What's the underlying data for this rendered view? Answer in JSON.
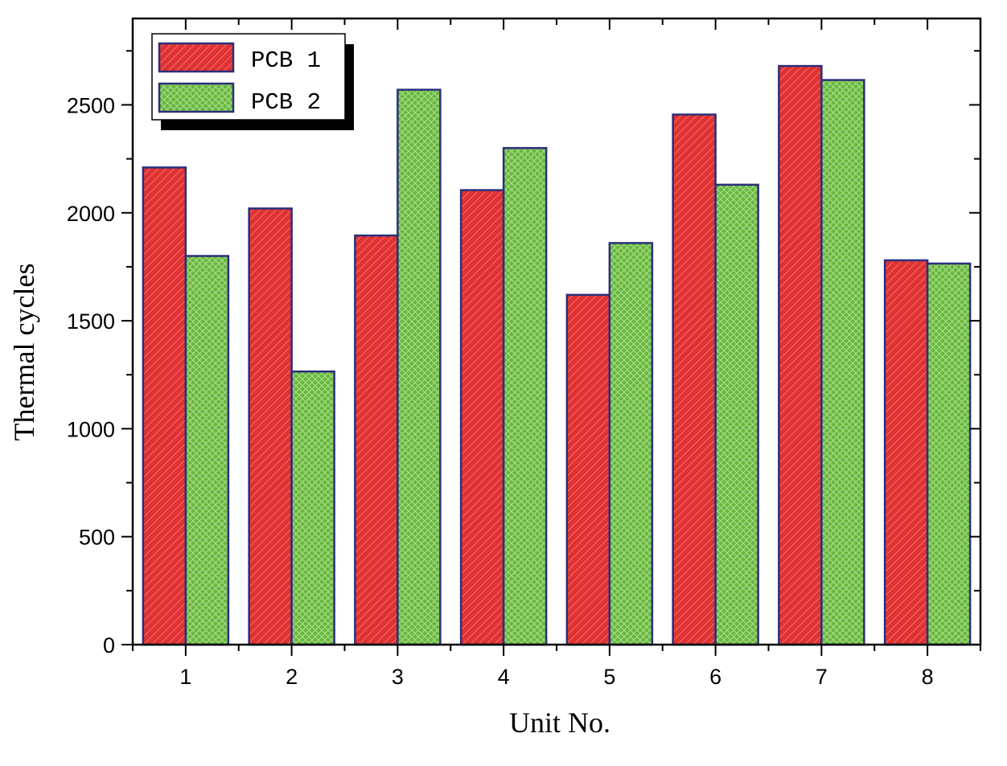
{
  "chart_data": {
    "type": "bar",
    "categories": [
      "1",
      "2",
      "3",
      "4",
      "5",
      "6",
      "7",
      "8"
    ],
    "series": [
      {
        "name": "PCB 1",
        "values": [
          2210,
          2020,
          1895,
          2105,
          1620,
          2455,
          2680,
          1780
        ]
      },
      {
        "name": "PCB 2",
        "values": [
          1800,
          1265,
          2570,
          2300,
          1860,
          2130,
          2615,
          1765
        ]
      }
    ],
    "title": "",
    "xlabel": "Unit No.",
    "ylabel": "Thermal cycles",
    "ylim": [
      0,
      2900
    ],
    "yticks": [
      "0",
      "500",
      "1000",
      "1500",
      "2000",
      "2500"
    ],
    "grid": false,
    "legend": {
      "position": "top-left"
    },
    "colors": {
      "PCB 1": "#e03232",
      "PCB 2": "#66b83a",
      "bar_outline": "#2b2f7a",
      "axis": "#000000"
    }
  }
}
